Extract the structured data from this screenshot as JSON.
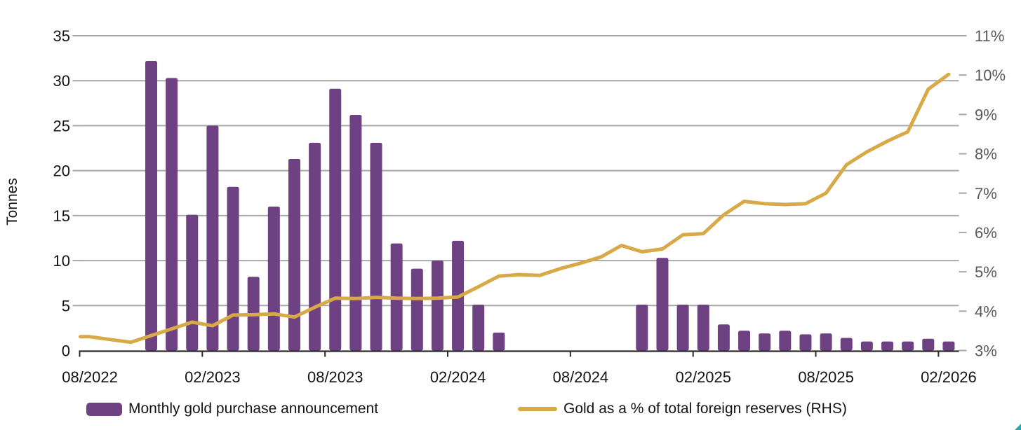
{
  "colors": {
    "bar": "#6d4182",
    "line": "#d7a947",
    "grid": "#a8a8a8",
    "axis": "#2b2b2b",
    "left_tick_text": "#141414",
    "right_tick_text": "#595959",
    "x_tick_text": "#141414",
    "corner_mark": "#2aa7ad"
  },
  "left_axis_title": "Tonnes",
  "legend": {
    "bar_label": "Monthly gold purchase announcement",
    "line_label": "Gold as a % of total foreign reserves (RHS)"
  },
  "chart_data": {
    "type": "bar+line",
    "categories": [
      "08/2022",
      "09/2022",
      "10/2022",
      "11/2022",
      "12/2022",
      "01/2023",
      "02/2023",
      "03/2023",
      "04/2023",
      "05/2023",
      "06/2023",
      "07/2023",
      "08/2023",
      "09/2023",
      "10/2023",
      "11/2023",
      "12/2023",
      "01/2024",
      "02/2024",
      "03/2024",
      "04/2024",
      "05/2024",
      "06/2024",
      "07/2024",
      "08/2024",
      "09/2024",
      "10/2024",
      "11/2024",
      "12/2024",
      "01/2025",
      "02/2025",
      "03/2025",
      "04/2025",
      "05/2025",
      "06/2025",
      "07/2025",
      "08/2025",
      "09/2025",
      "10/2025",
      "11/2025",
      "12/2025",
      "01/2026",
      "02/2026"
    ],
    "x_tick_labels": [
      "08/2022",
      "02/2023",
      "08/2023",
      "02/2024",
      "08/2024",
      "02/2025",
      "08/2025",
      "02/2026"
    ],
    "series": [
      {
        "name": "Monthly gold purchase announcement",
        "type": "bar",
        "axis": "left",
        "values": [
          null,
          null,
          null,
          32.2,
          30.3,
          15.1,
          25.0,
          18.2,
          8.2,
          16.0,
          21.3,
          23.1,
          29.1,
          26.2,
          23.1,
          11.9,
          9.1,
          10.0,
          12.2,
          5.1,
          2.0,
          null,
          null,
          null,
          null,
          null,
          null,
          5.1,
          10.3,
          5.1,
          5.1,
          2.9,
          2.2,
          1.9,
          2.2,
          1.8,
          1.9,
          1.4,
          1.0,
          1.0,
          1.0,
          1.3,
          1.0
        ]
      },
      {
        "name": "Gold as a % of total foreign reserves (RHS)",
        "type": "line",
        "axis": "right",
        "values": [
          3.35,
          3.28,
          3.21,
          3.38,
          3.55,
          3.72,
          3.63,
          3.9,
          3.91,
          3.93,
          3.85,
          4.1,
          4.33,
          4.32,
          4.35,
          4.33,
          4.32,
          4.33,
          4.36,
          4.62,
          4.89,
          4.93,
          4.91,
          5.08,
          5.22,
          5.38,
          5.67,
          5.51,
          5.58,
          5.94,
          5.97,
          6.45,
          6.79,
          6.73,
          6.71,
          6.73,
          7.0,
          7.72,
          8.05,
          8.32,
          8.56,
          9.64,
          10.02
        ]
      }
    ],
    "left_axis": {
      "label": "Tonnes",
      "min": 0,
      "max": 35,
      "step": 5
    },
    "right_axis": {
      "min": 3,
      "max": 11,
      "step": 1,
      "suffix": "%"
    },
    "grid": true,
    "legend_position": "bottom"
  }
}
